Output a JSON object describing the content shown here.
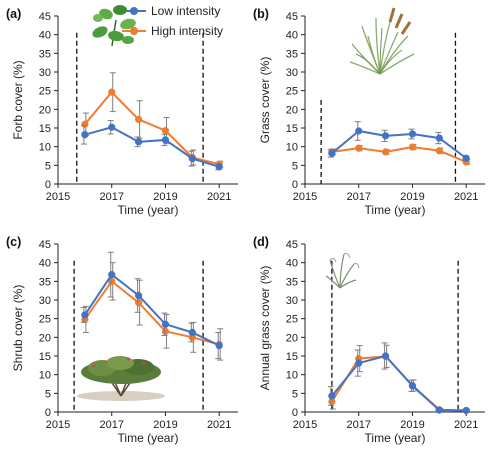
{
  "colors": {
    "low": "#4472C4",
    "high": "#ED7D31",
    "error": "#7f7f7f",
    "axis": "#222222"
  },
  "legend": {
    "low_label": "Low intensity",
    "high_label": "High intensity"
  },
  "x_ticks": [
    2015,
    2017,
    2019,
    2021
  ],
  "chart_data": [
    {
      "type": "line",
      "panel_label": "(a)",
      "xlabel": "Time (year)",
      "ylabel": "Forb cover (%)",
      "xlim": [
        2015,
        2021.7
      ],
      "ylim": [
        0,
        45
      ],
      "y_ticks": [
        0,
        5,
        10,
        15,
        20,
        25,
        30,
        35,
        40,
        45
      ],
      "dashed_lines_x": [
        2015.7,
        2020.4
      ],
      "illustration": "forb-plant-icon",
      "series": [
        {
          "name": "Low intensity",
          "x": [
            2016,
            2017,
            2018,
            2019,
            2020,
            2021
          ],
          "values": [
            13.2,
            15.2,
            11.3,
            11.8,
            6.8,
            4.6
          ],
          "errors": [
            2.5,
            1.8,
            1.3,
            1.5,
            2.0,
            0.8
          ]
        },
        {
          "name": "High intensity",
          "x": [
            2016,
            2017,
            2018,
            2019,
            2020,
            2021
          ],
          "values": [
            16.0,
            24.6,
            17.3,
            14.3,
            7.1,
            5.3
          ],
          "errors": [
            3.0,
            5.2,
            5.0,
            3.5,
            2.0,
            0.8
          ]
        }
      ]
    },
    {
      "type": "line",
      "panel_label": "(b)",
      "xlabel": "Time (year)",
      "ylabel": "Grass cover (%)",
      "xlim": [
        2015,
        2021.7
      ],
      "ylim": [
        0,
        45
      ],
      "y_ticks": [
        0,
        5,
        10,
        15,
        20,
        25,
        30,
        35,
        40,
        45
      ],
      "dashed_lines_x": [
        2015.6,
        2020.6
      ],
      "illustration": "grass-plant-icon",
      "series": [
        {
          "name": "Low intensity",
          "x": [
            2016,
            2017,
            2018,
            2019,
            2020,
            2021
          ],
          "values": [
            8.2,
            14.2,
            12.9,
            13.4,
            12.3,
            6.9
          ],
          "errors": [
            1.0,
            2.5,
            1.5,
            1.3,
            1.5,
            0.7
          ]
        },
        {
          "name": "High intensity",
          "x": [
            2016,
            2017,
            2018,
            2019,
            2020,
            2021
          ],
          "values": [
            8.6,
            9.6,
            8.6,
            9.9,
            8.9,
            5.9
          ],
          "errors": [
            0.8,
            0.7,
            0.6,
            0.7,
            0.7,
            0.6
          ]
        }
      ]
    },
    {
      "type": "line",
      "panel_label": "(c)",
      "xlabel": "Time (year)",
      "ylabel": "Shrub cover (%)",
      "xlim": [
        2015,
        2021.7
      ],
      "ylim": [
        0,
        45
      ],
      "y_ticks": [
        0,
        5,
        10,
        15,
        20,
        25,
        30,
        35,
        40,
        45
      ],
      "dashed_lines_x": [
        2015.6,
        2020.4
      ],
      "illustration": "shrub-plant-icon",
      "series": [
        {
          "name": "Low intensity",
          "x": [
            2016,
            2017,
            2018,
            2019,
            2020,
            2021
          ],
          "values": [
            26.0,
            36.8,
            31.2,
            23.5,
            21.3,
            17.8
          ],
          "errors": [
            2.0,
            6.0,
            4.5,
            3.0,
            2.5,
            3.5
          ]
        },
        {
          "name": "High intensity",
          "x": [
            2016,
            2017,
            2018,
            2019,
            2020,
            2021
          ],
          "values": [
            24.8,
            35.0,
            29.3,
            21.6,
            20.0,
            18.1
          ],
          "errors": [
            3.5,
            5.0,
            6.0,
            4.5,
            4.0,
            4.2
          ]
        }
      ]
    },
    {
      "type": "line",
      "panel_label": "(d)",
      "xlabel": "Time (year)",
      "ylabel": "Annual grass cover (%)",
      "xlim": [
        2015,
        2021.7
      ],
      "ylim": [
        0,
        45
      ],
      "y_ticks": [
        0,
        5,
        10,
        15,
        20,
        25,
        30,
        35,
        40,
        45
      ],
      "dashed_lines_x": [
        2016.0,
        2020.7
      ],
      "illustration": "annual-grass-icon",
      "series": [
        {
          "name": "Low intensity",
          "x": [
            2016,
            2017,
            2018,
            2019,
            2020,
            2021
          ],
          "values": [
            4.3,
            13.1,
            15.0,
            7.0,
            0.5,
            0.4
          ],
          "errors": [
            2.5,
            3.5,
            3.5,
            1.5,
            0.3,
            0.3
          ]
        },
        {
          "name": "High intensity",
          "x": [
            2016,
            2017,
            2018,
            2019,
            2020,
            2021
          ],
          "values": [
            2.8,
            14.3,
            14.9,
            7.1,
            0.6,
            0.4
          ],
          "errors": [
            2.0,
            3.5,
            3.0,
            1.5,
            0.3,
            0.3
          ]
        }
      ]
    }
  ]
}
